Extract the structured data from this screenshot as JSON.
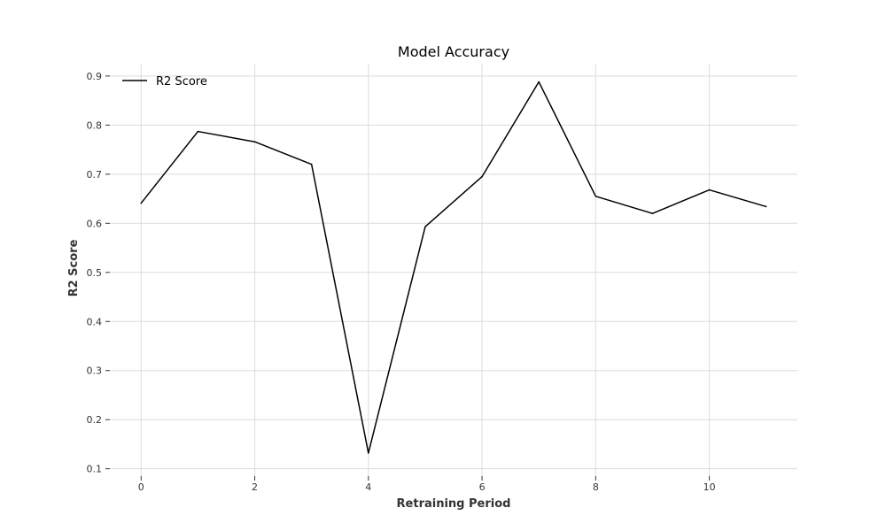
{
  "chart_data": {
    "type": "line",
    "title": "Model Accuracy",
    "xlabel": "Retraining Period",
    "ylabel": "R2 Score",
    "xlim": [
      -0.55,
      11.55
    ],
    "ylim": [
      0.085,
      0.925
    ],
    "xticks": [
      0,
      2,
      4,
      6,
      8,
      10
    ],
    "yticks": [
      0.1,
      0.2,
      0.3,
      0.4,
      0.5,
      0.6,
      0.7,
      0.8,
      0.9
    ],
    "grid": true,
    "legend_position": "top-left",
    "series": [
      {
        "name": "R2 Score",
        "color": "#000000",
        "x": [
          0,
          1,
          2,
          3,
          4,
          5,
          6,
          7,
          8,
          9,
          10,
          11
        ],
        "y": [
          0.641,
          0.787,
          0.766,
          0.72,
          0.132,
          0.593,
          0.695,
          0.888,
          0.655,
          0.62,
          0.668,
          0.634
        ]
      }
    ]
  }
}
